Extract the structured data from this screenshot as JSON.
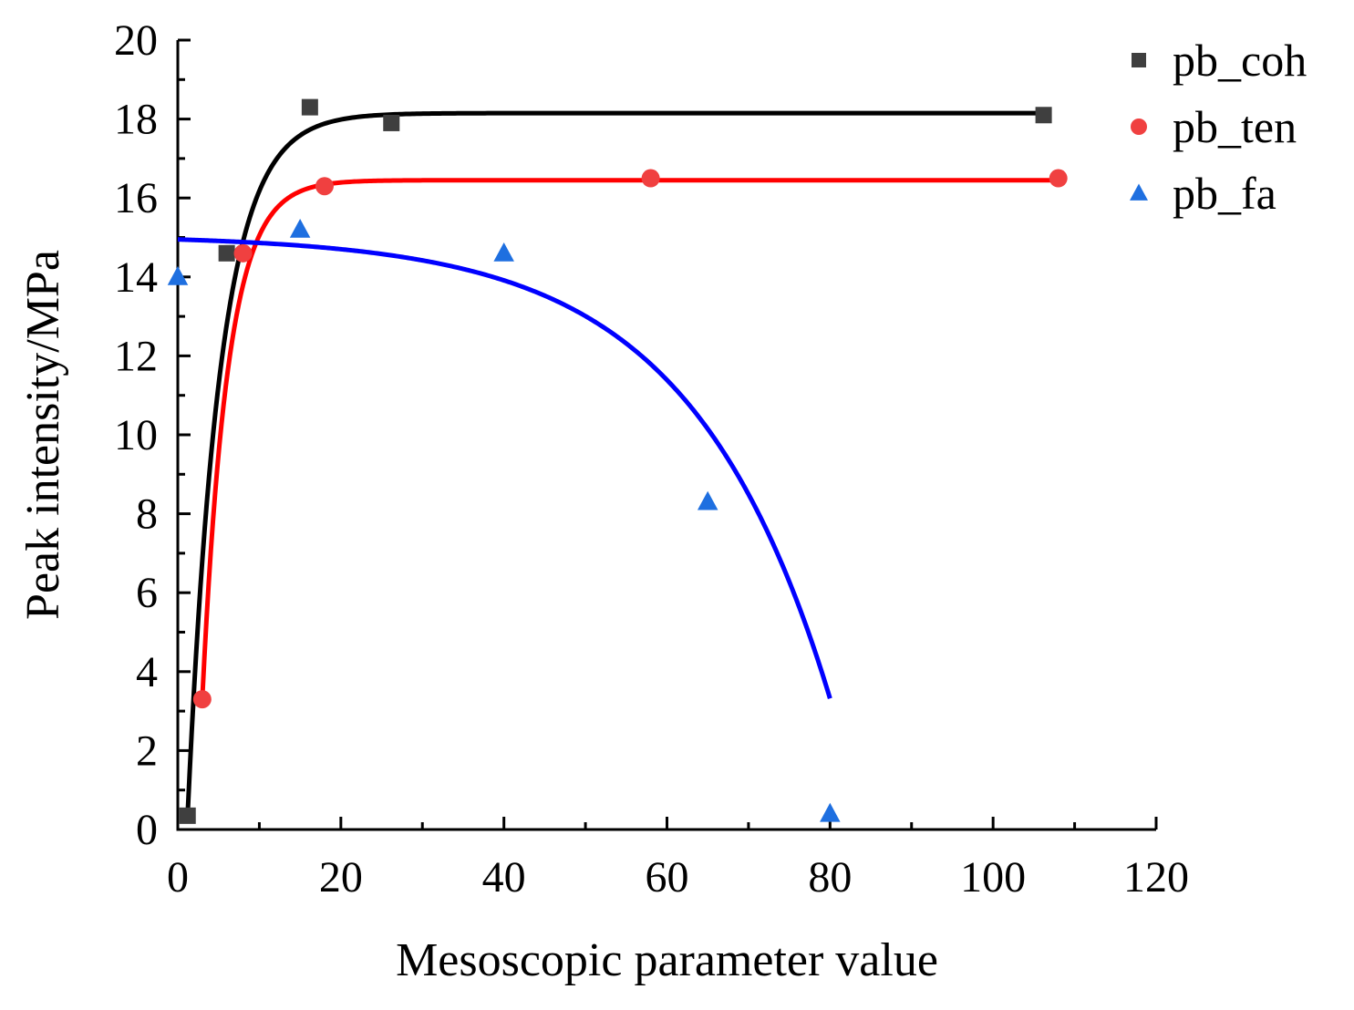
{
  "chart_data": {
    "type": "scatter",
    "title": "",
    "xlabel": "Mesoscopic parameter value",
    "ylabel": "Peak intensity/MPa",
    "xlim": [
      0,
      120
    ],
    "ylim": [
      0,
      20
    ],
    "xticks": [
      0,
      20,
      40,
      60,
      80,
      100,
      120
    ],
    "yticks": [
      0,
      2,
      4,
      6,
      8,
      10,
      12,
      14,
      16,
      18,
      20
    ],
    "grid": false,
    "legend_position": "top-right",
    "series": [
      {
        "name": "pb_coh",
        "marker": "square",
        "color": "#3f3f3f",
        "line_color": "#000000",
        "points": [
          [
            1.2,
            0.35
          ],
          [
            6,
            14.6
          ],
          [
            16.2,
            18.3
          ],
          [
            26.2,
            17.9
          ],
          [
            106.2,
            18.1
          ]
        ],
        "fit": {
          "form": "exp_rise",
          "ymax": 18.15,
          "x0": 1.2,
          "k": 0.25,
          "y_at_x0": 0.35,
          "x_range": [
            1.2,
            106.2
          ]
        }
      },
      {
        "name": "pb_ten",
        "marker": "circle",
        "color": "#f04040",
        "line_color": "#ff0000",
        "points": [
          [
            3,
            3.3
          ],
          [
            8,
            14.6
          ],
          [
            18,
            16.3
          ],
          [
            58,
            16.5
          ],
          [
            108,
            16.5
          ]
        ],
        "fit": {
          "form": "exp_rise",
          "ymax": 16.45,
          "x0": 3,
          "k": 0.32,
          "y_at_x0": 3.3,
          "x_range": [
            3,
            108
          ]
        }
      },
      {
        "name": "pb_fa",
        "marker": "triangle",
        "color": "#1e6fe0",
        "line_color": "#0000ff",
        "points": [
          [
            0,
            14
          ],
          [
            15,
            15.2
          ],
          [
            40,
            14.6
          ],
          [
            65,
            8.3
          ],
          [
            80,
            0.4
          ]
        ],
        "fit": {
          "form": "exp_decay_cap",
          "y0": 14.95,
          "a": 0.1125,
          "b": 0.0581,
          "x_range": [
            0,
            80
          ]
        }
      }
    ]
  }
}
